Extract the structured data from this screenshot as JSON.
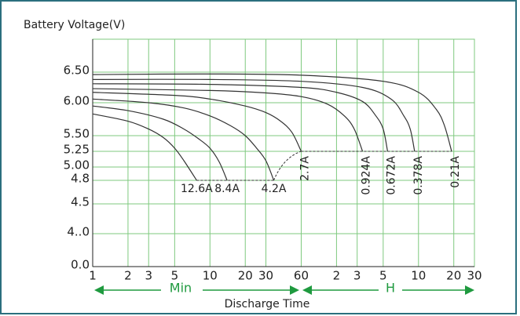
{
  "chart_data": {
    "type": "line",
    "ylabel": "Battery Voltage(V)",
    "xlabel": "Discharge Time",
    "annotations": [
      "Min",
      "H"
    ],
    "xscale": "log",
    "xlim": [
      1,
      1800
    ],
    "xticks": [
      1,
      2,
      3,
      5,
      10,
      20,
      30,
      60,
      {
        "value": 120,
        "label": "2"
      },
      {
        "value": 180,
        "label": "3"
      },
      {
        "value": 300,
        "label": "5"
      },
      {
        "value": 600,
        "label": "10"
      },
      {
        "value": 1200,
        "label": "20"
      },
      {
        "value": 1800,
        "label": "30"
      }
    ],
    "yticks": [
      {
        "value": 6.5,
        "label": "6.50"
      },
      {
        "value": 6,
        "label": "6.00"
      },
      {
        "value": 5.5,
        "label": "5.50"
      },
      5.25,
      {
        "value": 5,
        "label": "5.00"
      },
      4.8,
      4.5,
      {
        "value": 4,
        "label": "4..0"
      },
      {
        "value": 0,
        "label": "0.0"
      }
    ],
    "grid": true,
    "series": [
      {
        "name": "12.6A",
        "color": "#333333",
        "x": [
          1,
          2,
          3,
          4,
          5,
          6,
          7.7
        ],
        "values": [
          5.83,
          5.72,
          5.6,
          5.47,
          5.3,
          5.1,
          4.8
        ]
      },
      {
        "name": "8.4A",
        "color": "#333333",
        "x": [
          1,
          2,
          4,
          6,
          8,
          10,
          12,
          14
        ],
        "values": [
          5.95,
          5.88,
          5.75,
          5.6,
          5.45,
          5.3,
          5.08,
          4.8
        ]
      },
      {
        "name": "4.2A",
        "color": "#333333",
        "x": [
          1,
          3,
          6,
          10,
          15,
          20,
          25,
          30,
          35
        ],
        "values": [
          6.06,
          6.0,
          5.92,
          5.8,
          5.65,
          5.5,
          5.3,
          5.1,
          4.8
        ]
      },
      {
        "name": "2.7A",
        "color": "#333333",
        "x": [
          1,
          5,
          10,
          20,
          30,
          40,
          50,
          60
        ],
        "values": [
          6.17,
          6.12,
          6.06,
          5.95,
          5.85,
          5.72,
          5.55,
          5.25
        ]
      },
      {
        "name": "0.924A",
        "color": "#333333",
        "x": [
          1,
          10,
          30,
          60,
          100,
          140,
          170,
          200
        ],
        "values": [
          6.23,
          6.2,
          6.16,
          6.1,
          5.98,
          5.8,
          5.6,
          5.25
        ]
      },
      {
        "name": "0.672A",
        "color": "#333333",
        "x": [
          1,
          10,
          60,
          120,
          200,
          260,
          300,
          327
        ],
        "values": [
          6.31,
          6.3,
          6.25,
          6.17,
          6.02,
          5.8,
          5.6,
          5.25
        ]
      },
      {
        "name": "0.378A",
        "color": "#333333",
        "x": [
          1,
          10,
          60,
          200,
          350,
          450,
          510,
          556
        ],
        "values": [
          6.38,
          6.38,
          6.35,
          6.25,
          6.06,
          5.8,
          5.6,
          5.25
        ]
      },
      {
        "name": "0.21A",
        "color": "#333333",
        "x": [
          1,
          10,
          60,
          300,
          600,
          850,
          1000,
          1150
        ],
        "values": [
          6.46,
          6.47,
          6.45,
          6.35,
          6.17,
          5.9,
          5.65,
          5.25
        ]
      }
    ]
  }
}
